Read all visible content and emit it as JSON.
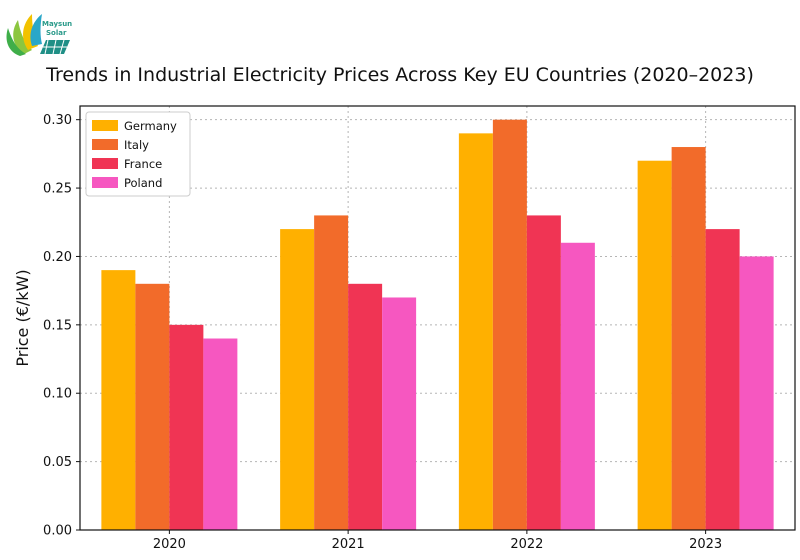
{
  "logo": {
    "name_line1": "Maysun",
    "name_line2": "Solar"
  },
  "chart_data": {
    "type": "bar",
    "title": "Trends in Industrial Electricity Prices Across Key EU Countries (2020–2023)",
    "xlabel": "",
    "ylabel": "Price (€/kW)",
    "ylim": [
      0,
      0.31
    ],
    "yticks": [
      "0.00",
      "0.05",
      "0.10",
      "0.15",
      "0.20",
      "0.25",
      "0.30"
    ],
    "ytick_values": [
      0,
      0.05,
      0.1,
      0.15,
      0.2,
      0.25,
      0.3
    ],
    "grid": true,
    "legend_position": "top-left",
    "categories": [
      "2020",
      "2021",
      "2022",
      "2023"
    ],
    "series": [
      {
        "name": "Germany",
        "color": "#FFB000",
        "values": [
          0.19,
          0.22,
          0.29,
          0.27
        ]
      },
      {
        "name": "Italy",
        "color": "#F26B2A",
        "values": [
          0.18,
          0.23,
          0.3,
          0.28
        ]
      },
      {
        "name": "France",
        "color": "#F03454",
        "values": [
          0.15,
          0.18,
          0.23,
          0.22
        ]
      },
      {
        "name": "Poland",
        "color": "#F657C0",
        "values": [
          0.14,
          0.17,
          0.21,
          0.2
        ]
      }
    ]
  }
}
